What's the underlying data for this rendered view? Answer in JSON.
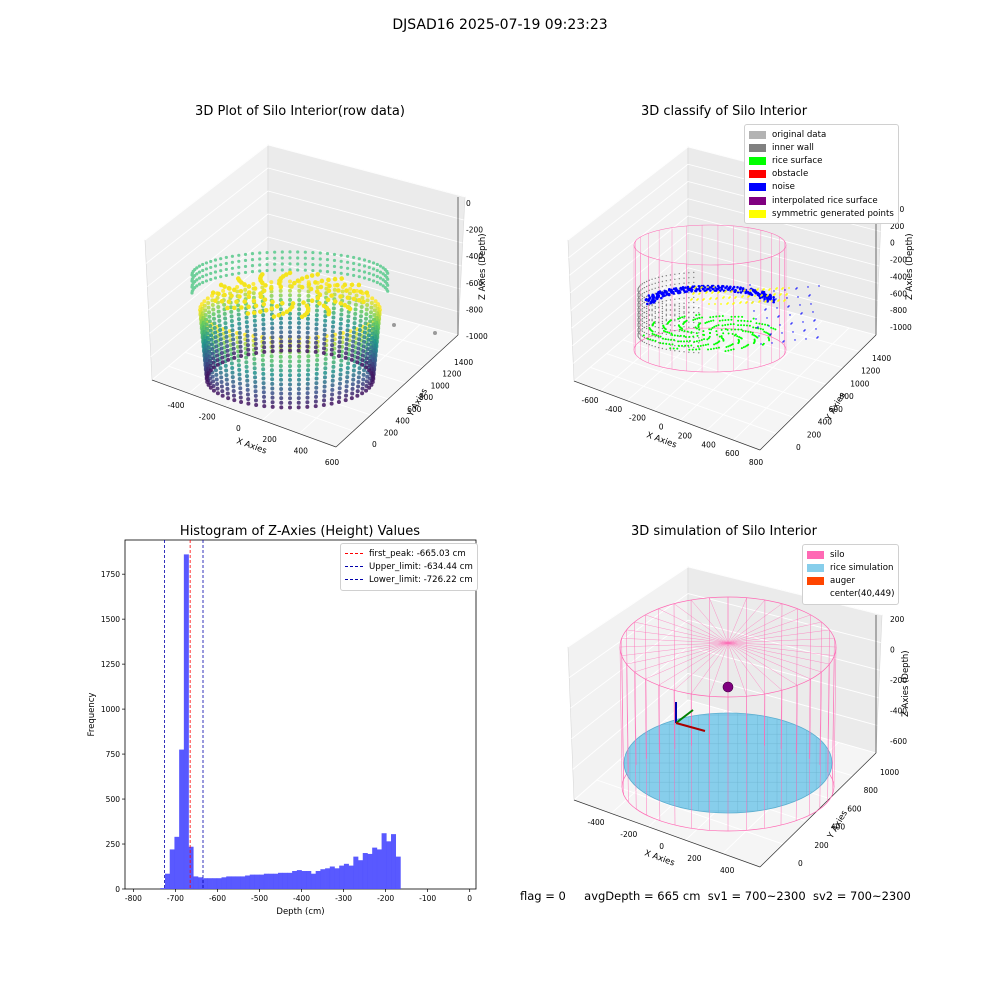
{
  "suptitle": "DJSAD16 2025-07-19 09:23:23",
  "panels": {
    "raw": {
      "title": "3D Plot of Silo Interior(row data)",
      "xlabel": "X Axies",
      "ylabel": "Y Axies",
      "zlabel": "Z Axies (Depth)",
      "xticks": [
        "-400",
        "-200",
        "0",
        "200",
        "400",
        "600"
      ],
      "yticks": [
        "0",
        "200",
        "400",
        "600",
        "800",
        "1000",
        "1200",
        "1400"
      ],
      "zticks": [
        "0",
        "-200",
        "-400",
        "-600",
        "-800",
        "-1000"
      ]
    },
    "classify": {
      "title": "3D classify of Silo Interior",
      "xlabel": "X Axies",
      "ylabel": "Y Axies",
      "zlabel": "Z Axies (Depth)",
      "xticks": [
        "-600",
        "-400",
        "-200",
        "0",
        "200",
        "400",
        "600",
        "800"
      ],
      "yticks": [
        "0",
        "200",
        "400",
        "600",
        "800",
        "1000",
        "1200",
        "1400"
      ],
      "zticks": [
        "400",
        "200",
        "0",
        "-200",
        "-400",
        "-600",
        "-800",
        "-1000"
      ],
      "legend": [
        {
          "label": "original data",
          "color": "#b3b3b3"
        },
        {
          "label": "inner wall",
          "color": "#808080"
        },
        {
          "label": "rice surface",
          "color": "#00ff00"
        },
        {
          "label": "obstacle",
          "color": "#ff0000"
        },
        {
          "label": "noise",
          "color": "#0000ff"
        },
        {
          "label": "interpolated rice surface",
          "color": "#800080"
        },
        {
          "label": "symmetric generated points",
          "color": "#ffff00"
        }
      ]
    },
    "histogram": {
      "title": "Histogram of Z-Axies (Height) Values",
      "xlabel": "Depth (cm)",
      "ylabel": "Frequency",
      "legend": [
        {
          "label": "first_peak: -665.03 cm",
          "color": "#ff0000"
        },
        {
          "label": "Upper_limit: -634.44 cm",
          "color": "#0000aa"
        },
        {
          "label": "Lower_limit: -726.22 cm",
          "color": "#0000aa"
        }
      ]
    },
    "simulation": {
      "title": "3D simulation of Silo Interior",
      "xlabel": "X Axies",
      "ylabel": "Y Axies",
      "zlabel": "Z Axies (Depth)",
      "xticks": [
        "-400",
        "-200",
        "0",
        "200",
        "400",
        "600"
      ],
      "yticks": [
        "0",
        "200",
        "400",
        "600",
        "800",
        "1000"
      ],
      "zticks": [
        "200",
        "0",
        "-200",
        "-400",
        "-600"
      ],
      "legend": [
        {
          "label": "silo",
          "color": "#ff69b4"
        },
        {
          "label": "rice simulation",
          "color": "#87ceeb"
        },
        {
          "label": "auger",
          "color": "#ff4500"
        },
        {
          "label": "center(40,449)",
          "color": ""
        }
      ]
    }
  },
  "status": {
    "flag": "flag = 0",
    "avg_depth": "avgDepth = 665 cm",
    "sv1": "sv1 = 700~2300",
    "sv2": "sv2 = 700~2300"
  },
  "chart_data": [
    {
      "type": "scatter",
      "title": "3D Plot of Silo Interior(row data)",
      "xlabel": "X Axies",
      "ylabel": "Y Axies",
      "zlabel": "Z Axies (Depth)",
      "xlim": [
        -500,
        600
      ],
      "ylim": [
        -100,
        1500
      ],
      "zlim": [
        -1050,
        50
      ],
      "colormap": "viridis"
    },
    {
      "type": "scatter",
      "title": "3D classify of Silo Interior",
      "xlabel": "X Axies",
      "ylabel": "Y Axies",
      "zlabel": "Z Axies (Depth)",
      "xlim": [
        -700,
        850
      ],
      "ylim": [
        -100,
        1500
      ],
      "zlim": [
        -1050,
        450
      ]
    },
    {
      "type": "bar",
      "title": "Histogram of Z-Axies (Height) Values",
      "xlabel": "Depth (cm)",
      "ylabel": "Frequency",
      "xlim": [
        -820,
        15
      ],
      "ylim": [
        0,
        1940
      ],
      "xticks": [
        -800,
        -700,
        -600,
        -500,
        -400,
        -300,
        -200,
        -100,
        0
      ],
      "yticks": [
        0,
        250,
        500,
        750,
        1000,
        1250,
        1500,
        1750
      ],
      "bin_width": 11.2,
      "bin_start": -736,
      "values": [
        5,
        85,
        220,
        290,
        775,
        1860,
        235,
        70,
        65,
        60,
        60,
        60,
        60,
        65,
        70,
        70,
        70,
        70,
        75,
        80,
        80,
        80,
        85,
        85,
        85,
        90,
        90,
        90,
        100,
        105,
        100,
        100,
        85,
        100,
        110,
        115,
        125,
        115,
        130,
        140,
        130,
        180,
        160,
        200,
        195,
        230,
        220,
        310,
        265,
        305,
        180
      ],
      "vlines": [
        {
          "name": "first_peak: -665.03 cm",
          "x": -665.03,
          "color": "#ff0000"
        },
        {
          "name": "Upper_limit: -634.44 cm",
          "x": -634.44,
          "color": "#0000aa"
        },
        {
          "name": "Lower_limit: -726.22 cm",
          "x": -726.22,
          "color": "#0000aa"
        }
      ],
      "bar_color": "#5050ff"
    },
    {
      "type": "scatter",
      "title": "3D simulation of Silo Interior",
      "xlabel": "X Axies",
      "ylabel": "Y Axies",
      "zlabel": "Z Axies (Depth)",
      "xlim": [
        -500,
        600
      ],
      "ylim": [
        -100,
        1050
      ],
      "zlim": [
        -700,
        300
      ],
      "center": [
        40,
        449
      ]
    }
  ]
}
